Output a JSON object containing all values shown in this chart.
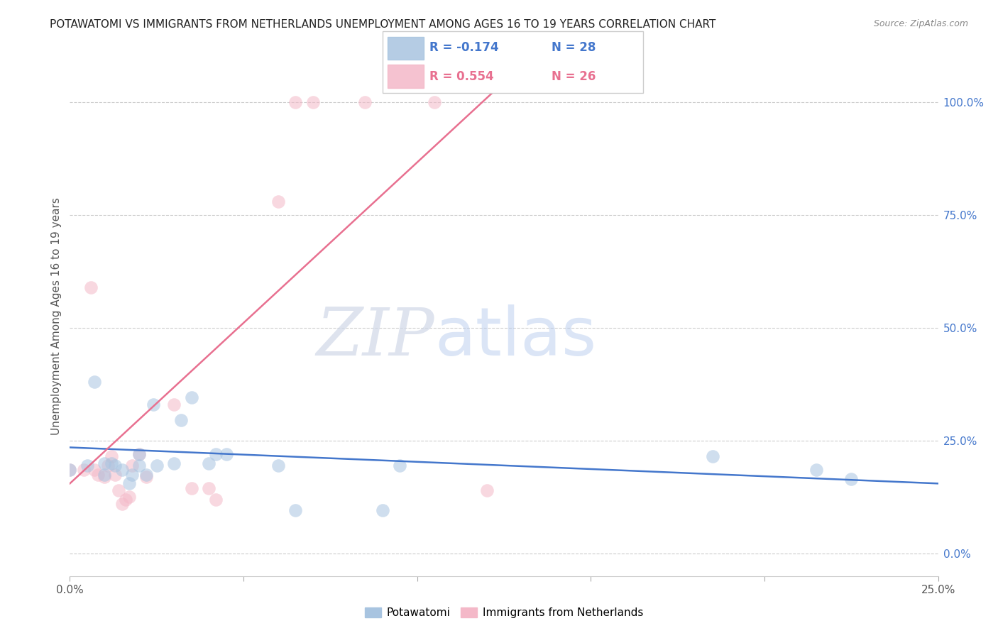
{
  "title": "POTAWATOMI VS IMMIGRANTS FROM NETHERLANDS UNEMPLOYMENT AMONG AGES 16 TO 19 YEARS CORRELATION CHART",
  "source": "Source: ZipAtlas.com",
  "ylabel": "Unemployment Among Ages 16 to 19 years",
  "xlim": [
    0.0,
    0.25
  ],
  "ylim": [
    -0.05,
    1.1
  ],
  "right_yticks": [
    0.0,
    0.25,
    0.5,
    0.75,
    1.0
  ],
  "right_yticklabels": [
    "0.0%",
    "25.0%",
    "50.0%",
    "75.0%",
    "100.0%"
  ],
  "xticks": [
    0.0,
    0.05,
    0.1,
    0.15,
    0.2,
    0.25
  ],
  "xticklabels": [
    "0.0%",
    "",
    "",
    "",
    "",
    "25.0%"
  ],
  "watermark_zip": "ZIP",
  "watermark_atlas": "atlas",
  "legend_blue_R": "R = -0.174",
  "legend_blue_N": "N = 28",
  "legend_pink_R": "R = 0.554",
  "legend_pink_N": "N = 26",
  "blue_color": "#a8c4e0",
  "pink_color": "#f4b8c8",
  "blue_line_color": "#4477cc",
  "pink_line_color": "#e87090",
  "blue_scatter_x": [
    0.0,
    0.005,
    0.007,
    0.01,
    0.01,
    0.012,
    0.013,
    0.015,
    0.017,
    0.018,
    0.02,
    0.02,
    0.022,
    0.024,
    0.025,
    0.03,
    0.032,
    0.035,
    0.04,
    0.042,
    0.045,
    0.06,
    0.065,
    0.09,
    0.095,
    0.185,
    0.215,
    0.225
  ],
  "blue_scatter_y": [
    0.185,
    0.195,
    0.38,
    0.2,
    0.175,
    0.2,
    0.195,
    0.185,
    0.155,
    0.175,
    0.22,
    0.195,
    0.175,
    0.33,
    0.195,
    0.2,
    0.295,
    0.345,
    0.2,
    0.22,
    0.22,
    0.195,
    0.095,
    0.095,
    0.195,
    0.215,
    0.185,
    0.165
  ],
  "pink_scatter_x": [
    0.0,
    0.004,
    0.006,
    0.007,
    0.008,
    0.01,
    0.011,
    0.012,
    0.013,
    0.014,
    0.015,
    0.016,
    0.017,
    0.018,
    0.02,
    0.022,
    0.03,
    0.035,
    0.04,
    0.042,
    0.06,
    0.065,
    0.07,
    0.085,
    0.105,
    0.12
  ],
  "pink_scatter_y": [
    0.185,
    0.185,
    0.59,
    0.185,
    0.175,
    0.17,
    0.195,
    0.215,
    0.175,
    0.14,
    0.11,
    0.12,
    0.125,
    0.195,
    0.22,
    0.17,
    0.33,
    0.145,
    0.145,
    0.12,
    0.78,
    1.0,
    1.0,
    1.0,
    1.0,
    0.14
  ],
  "blue_line_x": [
    0.0,
    0.25
  ],
  "blue_line_y": [
    0.235,
    0.155
  ],
  "pink_line_x": [
    0.0,
    0.13
  ],
  "pink_line_y": [
    0.155,
    1.08
  ],
  "marker_size": 180,
  "marker_alpha": 0.55,
  "background_color": "#ffffff",
  "grid_color": "#cccccc"
}
